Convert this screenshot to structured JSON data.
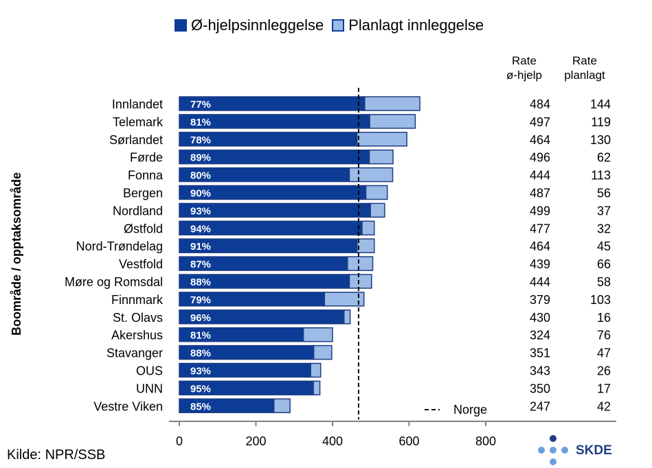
{
  "legend": {
    "emergency_label": "Ø-hjelpsinnleggelse",
    "planned_label": "Planlagt innleggelse"
  },
  "columns": {
    "emergency_rate_header": [
      "Rate",
      "ø-hjelp"
    ],
    "planned_rate_header": [
      "Rate",
      "planlagt"
    ]
  },
  "source": "Kilde: NPR/SSB",
  "logo_text": "SKDE",
  "colors": {
    "emergency": "#0c3c96",
    "planned": "#9cbbe6",
    "border": "#1e3c82",
    "axis": "#808080",
    "logo_dark": "#1e3c82",
    "logo_light": "#6aa0dc"
  },
  "chart_data": {
    "type": "bar",
    "orientation": "horizontal",
    "stacked": true,
    "ylabel": "Boområde / opptaksområde",
    "xlim": [
      0,
      800
    ],
    "xticks": [
      0,
      200,
      400,
      600,
      800
    ],
    "reference_line": {
      "label": "Norge",
      "value": 468,
      "style": "dashed"
    },
    "categories": [
      "Innlandet",
      "Telemark",
      "Sørlandet",
      "Førde",
      "Fonna",
      "Bergen",
      "Nordland",
      "Østfold",
      "Nord-Trøndelag",
      "Vestfold",
      "Møre og Romsdal",
      "Finnmark",
      "St. Olavs",
      "Akershus",
      "Stavanger",
      "OUS",
      "UNN",
      "Vestre Viken"
    ],
    "series": [
      {
        "name": "Ø-hjelpsinnleggelse",
        "values": [
          484,
          497,
          464,
          496,
          444,
          487,
          499,
          477,
          464,
          439,
          444,
          379,
          430,
          324,
          351,
          343,
          350,
          247
        ]
      },
      {
        "name": "Planlagt innleggelse",
        "values": [
          144,
          119,
          130,
          62,
          113,
          56,
          37,
          32,
          45,
          66,
          58,
          103,
          16,
          76,
          47,
          26,
          17,
          42
        ]
      }
    ],
    "emergency_share_labels": [
      "77%",
      "81%",
      "78%",
      "89%",
      "80%",
      "90%",
      "93%",
      "94%",
      "91%",
      "87%",
      "88%",
      "79%",
      "96%",
      "81%",
      "88%",
      "93%",
      "95%",
      "85%"
    ]
  }
}
